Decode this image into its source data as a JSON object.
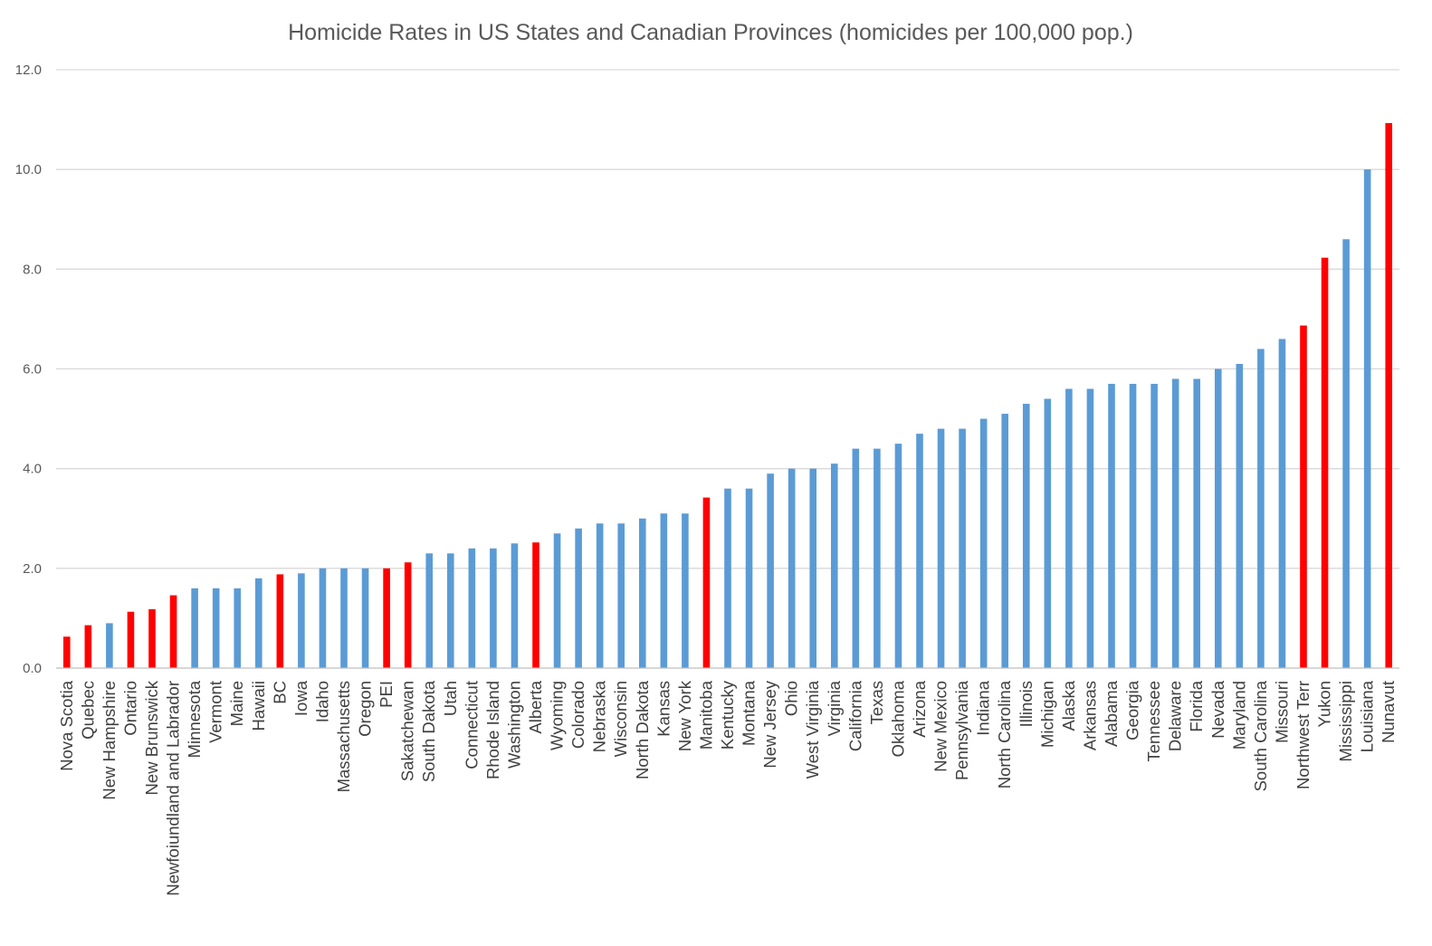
{
  "chart_data": {
    "type": "bar",
    "title": "Homicide Rates in US States and Canadian Provinces (homicides per 100,000 pop.)",
    "xlabel": "",
    "ylabel": "",
    "ylim": [
      0,
      12
    ],
    "yticks": [
      "0.0",
      "2.0",
      "4.0",
      "6.0",
      "8.0",
      "10.0",
      "12.0"
    ],
    "grid": true,
    "legend": "none",
    "colors": {
      "us_state": "#5b9bd5",
      "canadian_province": "#ff0000"
    },
    "categories": [
      "Nova Scotia",
      "Quebec",
      "New Hampshire",
      "Ontario",
      "New Brunswick",
      "Newfoiundland and Labrador",
      "Minnesota",
      "Vermont",
      "Maine",
      "Hawaii",
      "BC",
      "Iowa",
      "Idaho",
      "Massachusetts",
      "Oregon",
      "PEI",
      "Sakatchewan",
      "South Dakota",
      "Utah",
      "Connecticut",
      "Rhode Island",
      "Washington",
      "Alberta",
      "Wyoming",
      "Colorado",
      "Nebraska",
      "Wisconsin",
      "North Dakota",
      "Kansas",
      "New York",
      "Manitoba",
      "Kentucky",
      "Montana",
      "New Jersey",
      "Ohio",
      "West Virginia",
      "Virginia",
      "California",
      "Texas",
      "Oklahoma",
      "Arizona",
      "New Mexico",
      "Pennsylvania",
      "Indiana",
      "North Carolina",
      "Illinois",
      "Michigan",
      "Alaska",
      "Arkansas",
      "Alabama",
      "Georgia",
      "Tennessee",
      "Delaware",
      "Florida",
      "Nevada",
      "Maryland",
      "South Carolina",
      "Missouri",
      "Northwest Terr",
      "Yukon",
      "Mississippi",
      "Louisiana",
      "Nunavut"
    ],
    "values": [
      0.63,
      0.86,
      0.9,
      1.13,
      1.18,
      1.46,
      1.6,
      1.6,
      1.6,
      1.8,
      1.88,
      1.9,
      2.0,
      2.0,
      2.0,
      2.0,
      2.12,
      2.3,
      2.3,
      2.4,
      2.4,
      2.5,
      2.52,
      2.7,
      2.8,
      2.9,
      2.9,
      3.0,
      3.1,
      3.1,
      3.42,
      3.6,
      3.6,
      3.9,
      4.0,
      4.0,
      4.1,
      4.4,
      4.4,
      4.5,
      4.7,
      4.8,
      4.8,
      5.0,
      5.1,
      5.3,
      5.4,
      5.6,
      5.6,
      5.7,
      5.7,
      5.7,
      5.8,
      5.8,
      6.0,
      6.1,
      6.4,
      6.6,
      6.87,
      8.23,
      8.6,
      10.0,
      10.93
    ],
    "group": [
      "CA",
      "CA",
      "US",
      "CA",
      "CA",
      "CA",
      "US",
      "US",
      "US",
      "US",
      "CA",
      "US",
      "US",
      "US",
      "US",
      "CA",
      "CA",
      "US",
      "US",
      "US",
      "US",
      "US",
      "CA",
      "US",
      "US",
      "US",
      "US",
      "US",
      "US",
      "US",
      "CA",
      "US",
      "US",
      "US",
      "US",
      "US",
      "US",
      "US",
      "US",
      "US",
      "US",
      "US",
      "US",
      "US",
      "US",
      "US",
      "US",
      "US",
      "US",
      "US",
      "US",
      "US",
      "US",
      "US",
      "US",
      "US",
      "US",
      "US",
      "CA",
      "CA",
      "US",
      "US",
      "CA"
    ]
  }
}
